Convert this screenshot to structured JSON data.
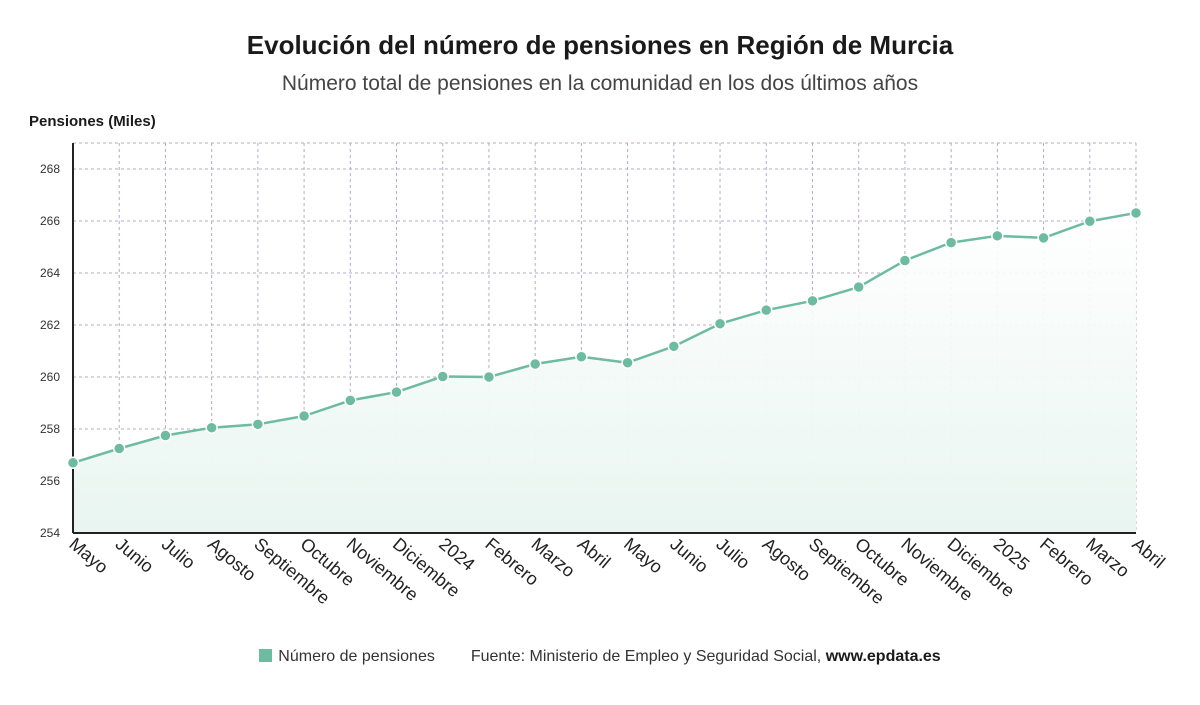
{
  "chart_data": {
    "type": "area",
    "title": "Evolución del número de pensiones en Región de Murcia",
    "subtitle": "Número total de pensiones en la comunidad en los dos últimos años",
    "ylabel": "Pensiones (Miles)",
    "ylim": [
      254,
      269
    ],
    "yticks": [
      254,
      256,
      258,
      260,
      262,
      264,
      266,
      268
    ],
    "grid": true,
    "categories": [
      "Mayo",
      "Junio",
      "Julio",
      "Agosto",
      "Septiembre",
      "Octubre",
      "Noviembre",
      "Diciembre",
      "2024",
      "Febrero",
      "Marzo",
      "Abril",
      "Mayo",
      "Junio",
      "Julio",
      "Agosto",
      "Septiembre",
      "Octubre",
      "Noviembre",
      "Diciembre",
      "2025",
      "Febrero",
      "Marzo",
      "Abril"
    ],
    "series": [
      {
        "name": "Número de pensiones",
        "color": "#6dbba0",
        "values": [
          256.7,
          257.25,
          257.75,
          258.05,
          258.18,
          258.5,
          259.1,
          259.42,
          260.02,
          260.0,
          260.5,
          260.78,
          260.55,
          261.18,
          262.05,
          262.57,
          262.93,
          263.46,
          264.48,
          265.17,
          265.43,
          265.35,
          265.99,
          266.31
        ]
      }
    ]
  },
  "footer": {
    "legend_label": "Número de pensiones",
    "source_text": "Fuente: Ministerio de Empleo y Seguridad Social,",
    "source_site": "www.epdata.es"
  }
}
